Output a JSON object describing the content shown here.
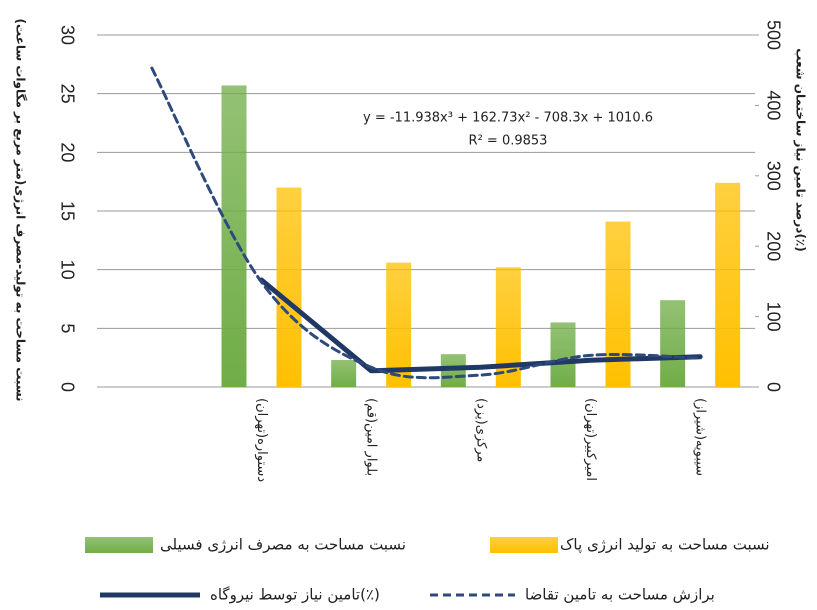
{
  "chart_data": {
    "type": "bar",
    "y_label": "نسبت مساحت به تولید-مصرف انرژی(متر مربع بر مگاوات ساعت)",
    "y2_label": "درصد تامین نیاز ساختمان شعب(٪)",
    "annotations": [
      "y = -11.938x³ + 162.73x² - 708.3x + 1010.6",
      "R² = 0.9853"
    ],
    "categories": [
      null,
      "دستواره(تهران)",
      "بلوار امین(قم)",
      "مرکزی(یزد)",
      "امیرکبیر(تهران)",
      "سیبویه(شیراز)"
    ],
    "series": [
      {
        "name": "نسبت مساحت به مصرف انرژی فسیلی",
        "type": "bar",
        "color": "#70ad47",
        "values": [
          null,
          25.7,
          2.3,
          2.8,
          5.5,
          7.4
        ]
      },
      {
        "name": "نسبت مساحت به تولید انرژی پاک",
        "type": "bar",
        "color": "#ffc000",
        "values": [
          null,
          17,
          10.6,
          10.2,
          14.1,
          17.4
        ]
      },
      {
        "name": "تامین نیاز توسط نیروگاه(٪)",
        "type": "line",
        "axis": "y2",
        "color": "#203864",
        "values": [
          null,
          152,
          23,
          28,
          38,
          43
        ]
      },
      {
        "name": "برازش مساحت به تامین تقاضا",
        "type": "line",
        "axis": "y2",
        "dashed": true,
        "color": "#2e4a7d",
        "values": [
          453,
          149,
          28,
          17,
          45,
          41
        ]
      }
    ],
    "ylim": [
      0,
      30
    ],
    "yticks": [
      0,
      5,
      10,
      15,
      20,
      25,
      30
    ],
    "y2lim": [
      0,
      500
    ],
    "y2ticks": [
      0,
      100,
      200,
      300,
      400,
      500
    ],
    "grid": true
  }
}
